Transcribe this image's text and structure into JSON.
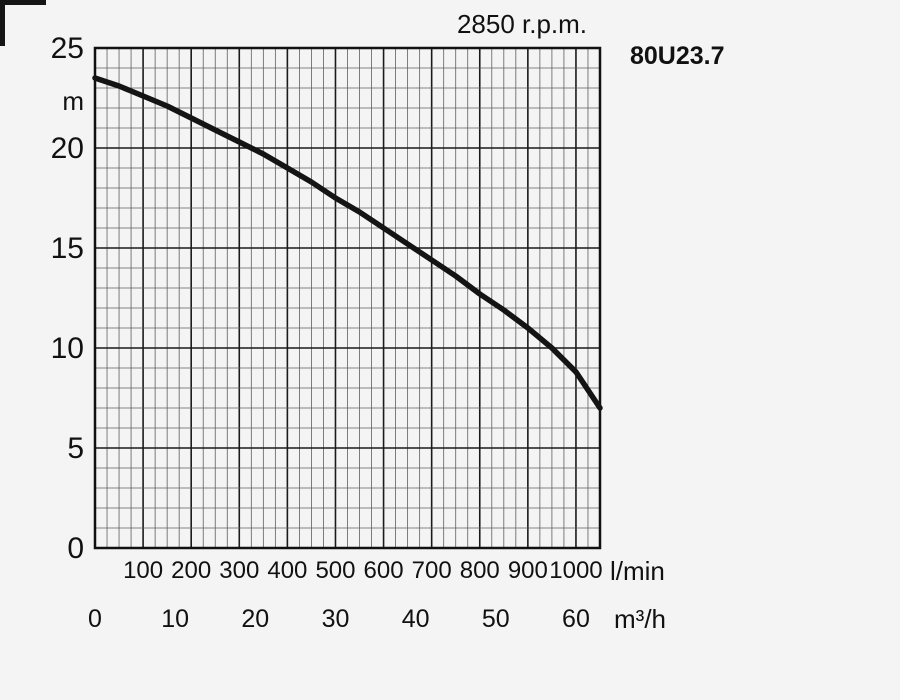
{
  "chart_data": {
    "type": "line",
    "title": "2850 r.p.m.",
    "model": "80U23.7",
    "grid": true,
    "legend": "none",
    "y_axis": {
      "unit": "m",
      "min": 0,
      "max": 25,
      "minor_step": 1,
      "major_step": 5,
      "tick_labels": [
        "0",
        "5",
        "10",
        "15",
        "20",
        "25"
      ]
    },
    "x_axis_lmin": {
      "unit": "l/min",
      "min": 0,
      "max": 1050,
      "minor_step": 25,
      "major_step": 100,
      "tick_labels": [
        "100",
        "200",
        "300",
        "400",
        "500",
        "600",
        "700",
        "800",
        "900",
        "1000"
      ]
    },
    "x_axis_m3h": {
      "unit": "m³/h",
      "lmin_per_unit": 16.6667,
      "tick_labels": [
        "0",
        "10",
        "20",
        "30",
        "40",
        "50",
        "60"
      ]
    },
    "series": [
      {
        "name": "head-capacity-curve",
        "points": [
          [
            0,
            23.5
          ],
          [
            50,
            23.1
          ],
          [
            100,
            22.6
          ],
          [
            150,
            22.1
          ],
          [
            200,
            21.5
          ],
          [
            250,
            20.9
          ],
          [
            300,
            20.3
          ],
          [
            350,
            19.7
          ],
          [
            400,
            19.0
          ],
          [
            450,
            18.3
          ],
          [
            500,
            17.5
          ],
          [
            550,
            16.8
          ],
          [
            600,
            16.0
          ],
          [
            650,
            15.2
          ],
          [
            700,
            14.4
          ],
          [
            750,
            13.6
          ],
          [
            800,
            12.7
          ],
          [
            850,
            11.9
          ],
          [
            900,
            11.0
          ],
          [
            950,
            10.0
          ],
          [
            1000,
            8.8
          ],
          [
            1050,
            7.0
          ]
        ]
      }
    ],
    "colors": {
      "curve": "#141414",
      "grid_minor": "#5e5e5e",
      "grid_major": "#1a1a1a",
      "frame": "#111111",
      "text": "#111111",
      "background": "#f4f4f4"
    }
  }
}
